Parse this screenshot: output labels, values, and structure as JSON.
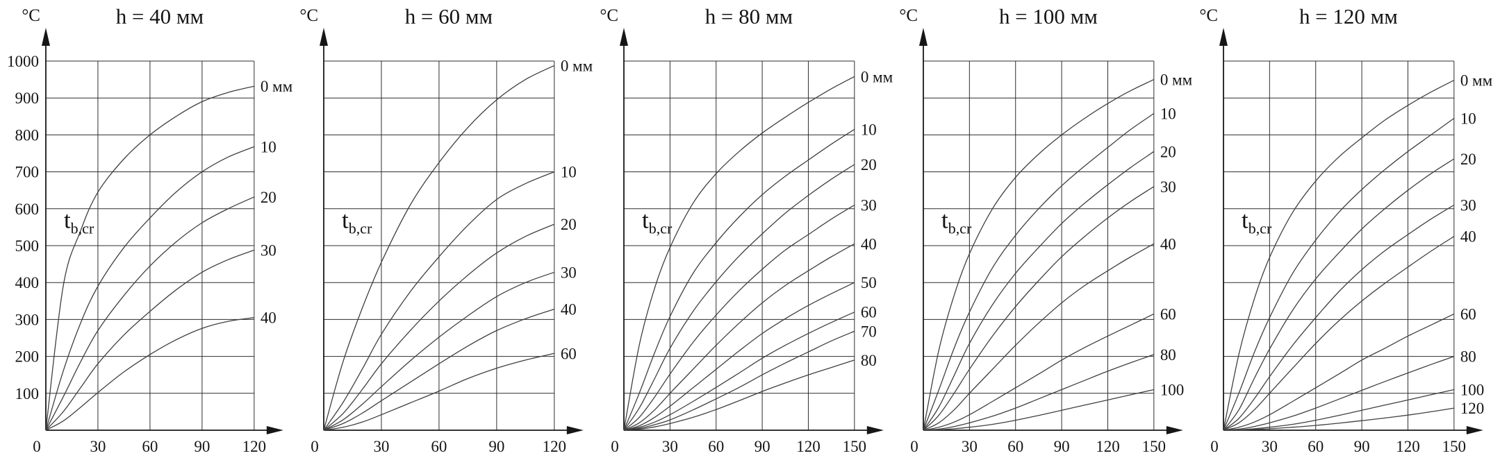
{
  "chart_data": [
    {
      "type": "line",
      "title": "h = 40 мм",
      "y_unit": "°C",
      "inner_label": "t",
      "inner_label_sub": "b,cr",
      "y_max": 1000,
      "x_max": 120,
      "grid": true,
      "show_y_tick_labels": true,
      "y_ticks": [
        100,
        200,
        300,
        400,
        500,
        600,
        700,
        800,
        900,
        1000
      ],
      "x_ticks": [
        0,
        30,
        60,
        90,
        120
      ],
      "x": [
        0,
        10,
        20,
        30,
        45,
        60,
        75,
        90,
        105,
        120
      ],
      "series": [
        {
          "name": "0 мм",
          "values": [
            0,
            390,
            540,
            645,
            735,
            800,
            850,
            890,
            915,
            932
          ]
        },
        {
          "name": "10",
          "values": [
            0,
            160,
            290,
            390,
            495,
            575,
            645,
            700,
            740,
            768
          ]
        },
        {
          "name": "20",
          "values": [
            0,
            90,
            185,
            270,
            365,
            445,
            510,
            562,
            600,
            632
          ]
        },
        {
          "name": "30",
          "values": [
            0,
            50,
            115,
            180,
            258,
            322,
            380,
            428,
            462,
            488
          ]
        },
        {
          "name": "40",
          "values": [
            0,
            25,
            62,
            102,
            158,
            205,
            245,
            276,
            295,
            305
          ]
        }
      ]
    },
    {
      "type": "line",
      "title": "h = 60 мм",
      "y_unit": "°C",
      "inner_label": "t",
      "inner_label_sub": "b,cr",
      "y_max": 1000,
      "x_max": 120,
      "grid": true,
      "show_y_tick_labels": false,
      "y_ticks": [
        100,
        200,
        300,
        400,
        500,
        600,
        700,
        800,
        900,
        1000
      ],
      "x_ticks": [
        0,
        30,
        60,
        90,
        120
      ],
      "x": [
        0,
        10,
        20,
        30,
        45,
        60,
        75,
        90,
        105,
        120
      ],
      "series": [
        {
          "name": "0 мм",
          "values": [
            0,
            185,
            330,
            455,
            610,
            725,
            820,
            895,
            950,
            988
          ]
        },
        {
          "name": "10",
          "values": [
            0,
            75,
            165,
            260,
            375,
            470,
            555,
            625,
            668,
            700
          ]
        },
        {
          "name": "20",
          "values": [
            0,
            45,
            110,
            180,
            270,
            350,
            420,
            480,
            525,
            558
          ]
        },
        {
          "name": "30",
          "values": [
            0,
            28,
            70,
            118,
            188,
            252,
            310,
            362,
            400,
            428
          ]
        },
        {
          "name": "40",
          "values": [
            0,
            18,
            46,
            80,
            130,
            180,
            228,
            270,
            302,
            328
          ]
        },
        {
          "name": "60",
          "values": [
            0,
            8,
            22,
            42,
            74,
            106,
            140,
            168,
            190,
            208
          ]
        }
      ]
    },
    {
      "type": "line",
      "title": "h = 80 мм",
      "y_unit": "°C",
      "inner_label": "t",
      "inner_label_sub": "b,cr",
      "y_max": 1000,
      "x_max": 150,
      "grid": true,
      "show_y_tick_labels": false,
      "y_ticks": [
        100,
        200,
        300,
        400,
        500,
        600,
        700,
        800,
        900,
        1000
      ],
      "x_ticks": [
        0,
        30,
        60,
        90,
        120,
        150
      ],
      "x": [
        0,
        10,
        20,
        30,
        45,
        60,
        75,
        90,
        105,
        120,
        135,
        150
      ],
      "series": [
        {
          "name": "0 мм",
          "values": [
            0,
            230,
            385,
            495,
            615,
            695,
            755,
            805,
            848,
            888,
            925,
            958
          ]
        },
        {
          "name": "10",
          "values": [
            0,
            100,
            210,
            308,
            425,
            508,
            578,
            638,
            688,
            732,
            775,
            815
          ]
        },
        {
          "name": "20",
          "values": [
            0,
            60,
            140,
            222,
            322,
            402,
            472,
            532,
            588,
            636,
            680,
            720
          ]
        },
        {
          "name": "30",
          "values": [
            0,
            35,
            90,
            152,
            238,
            312,
            378,
            436,
            488,
            530,
            572,
            610
          ]
        },
        {
          "name": "40",
          "values": [
            0,
            20,
            55,
            100,
            165,
            230,
            290,
            345,
            392,
            432,
            470,
            505
          ]
        },
        {
          "name": "50",
          "values": [
            0,
            12,
            35,
            65,
            115,
            165,
            215,
            262,
            302,
            338,
            370,
            400
          ]
        },
        {
          "name": "60",
          "values": [
            0,
            8,
            22,
            42,
            78,
            116,
            155,
            195,
            230,
            262,
            292,
            320
          ]
        },
        {
          "name": "70",
          "values": [
            0,
            5,
            15,
            28,
            55,
            85,
            116,
            150,
            182,
            212,
            242,
            268
          ]
        },
        {
          "name": "80",
          "values": [
            0,
            3,
            9,
            18,
            35,
            56,
            80,
            105,
            128,
            150,
            170,
            190
          ]
        }
      ]
    },
    {
      "type": "line",
      "title": "h = 100 мм",
      "y_unit": "°C",
      "inner_label": "t",
      "inner_label_sub": "b,cr",
      "y_max": 1000,
      "x_max": 150,
      "grid": true,
      "show_y_tick_labels": false,
      "y_ticks": [
        100,
        200,
        300,
        400,
        500,
        600,
        700,
        800,
        900,
        1000
      ],
      "x_ticks": [
        0,
        30,
        60,
        90,
        120,
        150
      ],
      "x": [
        0,
        10,
        20,
        30,
        45,
        60,
        75,
        90,
        105,
        120,
        135,
        150
      ],
      "series": [
        {
          "name": "0 мм",
          "values": [
            0,
            215,
            365,
            478,
            600,
            685,
            748,
            800,
            845,
            885,
            920,
            950
          ]
        },
        {
          "name": "10",
          "values": [
            0,
            108,
            222,
            320,
            440,
            528,
            600,
            662,
            716,
            766,
            815,
            858
          ]
        },
        {
          "name": "20",
          "values": [
            0,
            62,
            148,
            235,
            340,
            425,
            495,
            560,
            615,
            665,
            712,
            755
          ]
        },
        {
          "name": "30",
          "values": [
            0,
            40,
            100,
            165,
            255,
            335,
            405,
            470,
            525,
            575,
            620,
            660
          ]
        },
        {
          "name": "40",
          "values": [
            0,
            20,
            55,
            100,
            165,
            230,
            290,
            345,
            392,
            432,
            470,
            505
          ]
        },
        {
          "name": "60",
          "values": [
            0,
            8,
            22,
            42,
            78,
            115,
            152,
            190,
            224,
            255,
            285,
            315
          ]
        },
        {
          "name": "80",
          "values": [
            0,
            3,
            10,
            20,
            38,
            60,
            85,
            110,
            135,
            160,
            183,
            205
          ]
        },
        {
          "name": "100",
          "values": [
            0,
            1,
            4,
            8,
            16,
            27,
            40,
            54,
            68,
            82,
            96,
            110
          ]
        }
      ]
    },
    {
      "type": "line",
      "title": "h = 120 мм",
      "y_unit": "°C",
      "inner_label": "t",
      "inner_label_sub": "b,cr",
      "y_max": 1000,
      "x_max": 150,
      "grid": true,
      "show_y_tick_labels": false,
      "y_ticks": [
        100,
        200,
        300,
        400,
        500,
        600,
        700,
        800,
        900,
        1000
      ],
      "x_ticks": [
        0,
        30,
        60,
        90,
        120,
        150
      ],
      "x": [
        0,
        10,
        20,
        30,
        45,
        60,
        75,
        90,
        105,
        120,
        135,
        150
      ],
      "series": [
        {
          "name": "0 мм",
          "values": [
            0,
            205,
            355,
            468,
            590,
            675,
            740,
            792,
            840,
            880,
            916,
            948
          ]
        },
        {
          "name": "10",
          "values": [
            0,
            100,
            210,
            305,
            425,
            515,
            590,
            652,
            706,
            755,
            800,
            845
          ]
        },
        {
          "name": "20",
          "values": [
            0,
            55,
            140,
            220,
            325,
            410,
            480,
            545,
            600,
            650,
            695,
            735
          ]
        },
        {
          "name": "30",
          "values": [
            0,
            32,
            85,
            145,
            230,
            305,
            375,
            435,
            486,
            530,
            572,
            610
          ]
        },
        {
          "name": "40",
          "values": [
            0,
            20,
            55,
            100,
            168,
            235,
            296,
            350,
            398,
            442,
            485,
            525
          ]
        },
        {
          "name": "60",
          "values": [
            0,
            8,
            22,
            42,
            78,
            115,
            152,
            190,
            222,
            255,
            285,
            315
          ]
        },
        {
          "name": "80",
          "values": [
            0,
            3,
            10,
            20,
            38,
            60,
            84,
            108,
            132,
            155,
            178,
            200
          ]
        },
        {
          "name": "100",
          "values": [
            0,
            1,
            4,
            8,
            16,
            27,
            40,
            54,
            68,
            82,
            96,
            110
          ]
        },
        {
          "name": "120",
          "values": [
            0,
            0,
            2,
            4,
            8,
            13,
            19,
            26,
            33,
            41,
            50,
            60
          ]
        }
      ]
    }
  ]
}
